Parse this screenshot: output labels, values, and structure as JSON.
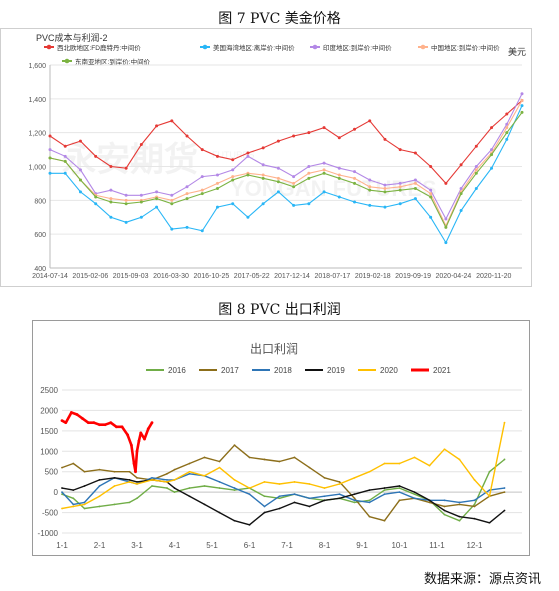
{
  "figures": {
    "fig7_title": "图 7 PVC 美金价格",
    "fig8_title": "图 8 PVC 出口利润",
    "source": "数据来源：源点资讯"
  },
  "chart_data": [
    {
      "type": "line",
      "title": "PVC成本与利润-2",
      "unit_label": "美元",
      "ylim": [
        400,
        1600
      ],
      "yticks": [
        400,
        600,
        800,
        1000,
        1200,
        1400,
        1600
      ],
      "x_tick_labels": [
        "2014-07-14",
        "2015-02-06",
        "2015-09-03",
        "2016-03-30",
        "2016-10-25",
        "2017-05-22",
        "2017-12-14",
        "2018-07-17",
        "2019-02-18",
        "2019-09-19",
        "2020-04-24",
        "2020-11-20"
      ],
      "grid": true,
      "legend_position": "top",
      "watermark": "FUTURES 永安期货 YONGAN FUTURES",
      "series": [
        {
          "name": "西北欧地区:FD鹿特丹:中间价",
          "color": "#e53935",
          "values": [
            1180,
            1120,
            1150,
            1060,
            1000,
            990,
            1130,
            1240,
            1270,
            1180,
            1100,
            1060,
            1040,
            1080,
            1110,
            1150,
            1180,
            1200,
            1230,
            1170,
            1220,
            1270,
            1160,
            1100,
            1080,
            1000,
            900,
            1010,
            1120,
            1230,
            1310,
            1390
          ]
        },
        {
          "name": "美国海湾地区:离岸价:中间价",
          "color": "#29b6f6",
          "values": [
            960,
            960,
            850,
            780,
            700,
            670,
            700,
            760,
            630,
            640,
            620,
            760,
            780,
            700,
            780,
            850,
            770,
            780,
            850,
            820,
            790,
            770,
            760,
            780,
            810,
            700,
            550,
            740,
            870,
            990,
            1160,
            1360
          ]
        },
        {
          "name": "印度地区:到岸价:中间价",
          "color": "#b388e6",
          "values": [
            1100,
            1060,
            980,
            840,
            860,
            830,
            830,
            850,
            830,
            880,
            940,
            950,
            980,
            1060,
            1010,
            990,
            940,
            1000,
            1020,
            990,
            970,
            920,
            890,
            900,
            920,
            860,
            690,
            870,
            1000,
            1100,
            1250,
            1430
          ]
        },
        {
          "name": "中国地区:到岸价:中间价",
          "color": "#ffb28c",
          "values": [
            1050,
            1030,
            920,
            830,
            810,
            800,
            800,
            820,
            800,
            840,
            860,
            900,
            940,
            960,
            950,
            930,
            900,
            960,
            980,
            950,
            930,
            880,
            870,
            880,
            900,
            840,
            650,
            850,
            980,
            1080,
            1230,
            1390
          ]
        },
        {
          "name": "东南亚地区:到岸价:中间价",
          "color": "#7cb342",
          "values": [
            1050,
            1030,
            920,
            820,
            790,
            780,
            790,
            810,
            780,
            810,
            840,
            870,
            920,
            950,
            930,
            910,
            880,
            930,
            960,
            930,
            900,
            860,
            850,
            860,
            870,
            820,
            640,
            840,
            960,
            1070,
            1200,
            1320
          ]
        }
      ]
    },
    {
      "type": "line",
      "title": "出口利润",
      "ylim": [
        -1000,
        2500
      ],
      "yticks": [
        -1000,
        -500,
        0,
        500,
        1000,
        1500,
        2000,
        2500
      ],
      "categories": [
        "1-1",
        "2-1",
        "3-1",
        "4-1",
        "5-1",
        "6-1",
        "7-1",
        "8-1",
        "9-1",
        "10-1",
        "11-1",
        "12-1"
      ],
      "grid": true,
      "legend_position": "top",
      "series": [
        {
          "name": "2016",
          "color": "#70ad47",
          "x": [
            0,
            0.3,
            0.6,
            1,
            1.4,
            1.8,
            2,
            2.4,
            2.8,
            3,
            3.4,
            3.8,
            4.2,
            4.6,
            5,
            5.4,
            5.8,
            6.2,
            6.6,
            7,
            7.4,
            7.8,
            8.2,
            8.6,
            9,
            9.4,
            9.8,
            10.2,
            10.6,
            11,
            11.4,
            11.8
          ],
          "values": [
            -50,
            -150,
            -400,
            -350,
            -300,
            -250,
            -150,
            150,
            100,
            0,
            100,
            150,
            100,
            50,
            100,
            -100,
            -150,
            -50,
            -150,
            -200,
            -150,
            -250,
            -200,
            50,
            100,
            -50,
            -200,
            -550,
            -700,
            -300,
            500,
            800
          ]
        },
        {
          "name": "2017",
          "color": "#8c6e1a",
          "x": [
            0,
            0.3,
            0.6,
            1,
            1.4,
            1.8,
            2,
            2.4,
            2.8,
            3,
            3.4,
            3.8,
            4.2,
            4.6,
            5,
            5.4,
            5.8,
            6.2,
            6.6,
            7,
            7.4,
            7.8,
            8.2,
            8.6,
            9,
            9.4,
            9.8,
            10.2,
            10.6,
            11,
            11.4,
            11.8
          ],
          "values": [
            600,
            700,
            500,
            550,
            500,
            500,
            350,
            300,
            450,
            550,
            700,
            850,
            750,
            1150,
            850,
            800,
            750,
            850,
            600,
            350,
            250,
            -150,
            -600,
            -700,
            -200,
            -150,
            -250,
            -350,
            -300,
            -350,
            -100,
            0
          ]
        },
        {
          "name": "2018",
          "color": "#2e75b6",
          "x": [
            0,
            0.3,
            0.6,
            1,
            1.4,
            1.8,
            2,
            2.4,
            2.8,
            3,
            3.4,
            3.8,
            4.2,
            4.6,
            5,
            5.4,
            5.8,
            6.2,
            6.6,
            7,
            7.4,
            7.8,
            8.2,
            8.6,
            9,
            9.4,
            9.8,
            10.2,
            10.6,
            11,
            11.4,
            11.8
          ],
          "values": [
            0,
            -300,
            -250,
            150,
            350,
            250,
            200,
            350,
            300,
            300,
            450,
            400,
            250,
            100,
            -50,
            -350,
            -100,
            -50,
            -150,
            -100,
            -50,
            -200,
            -250,
            -50,
            0,
            -150,
            -200,
            -200,
            -250,
            -200,
            50,
            100
          ]
        },
        {
          "name": "2019",
          "color": "#111111",
          "x": [
            0,
            0.3,
            0.6,
            1,
            1.4,
            1.8,
            2,
            2.4,
            2.8,
            3,
            3.4,
            3.8,
            4.2,
            4.6,
            5,
            5.4,
            5.8,
            6.2,
            6.6,
            7,
            7.4,
            7.8,
            8.2,
            8.6,
            9,
            9.4,
            9.8,
            10.2,
            10.6,
            11,
            11.4,
            11.8
          ],
          "values": [
            100,
            50,
            150,
            300,
            350,
            300,
            250,
            300,
            250,
            100,
            -100,
            -300,
            -500,
            -700,
            -800,
            -500,
            -400,
            -250,
            -350,
            -200,
            -150,
            -50,
            50,
            100,
            150,
            0,
            -200,
            -450,
            -600,
            -650,
            -750,
            -450
          ]
        },
        {
          "name": "2020",
          "color": "#ffc000",
          "x": [
            0,
            0.3,
            0.6,
            1,
            1.4,
            1.8,
            2,
            2.4,
            2.8,
            3,
            3.4,
            3.8,
            4.2,
            4.6,
            5,
            5.4,
            5.8,
            6.2,
            6.6,
            7,
            7.4,
            7.8,
            8.2,
            8.6,
            9,
            9.4,
            9.8,
            10.2,
            10.6,
            11,
            11.4,
            11.8
          ],
          "values": [
            -400,
            -350,
            -300,
            -100,
            150,
            250,
            200,
            300,
            250,
            300,
            500,
            400,
            600,
            300,
            100,
            250,
            200,
            250,
            200,
            100,
            200,
            350,
            500,
            700,
            700,
            850,
            650,
            1050,
            800,
            300,
            -100,
            1700
          ]
        },
        {
          "name": "2021",
          "color": "#ff0000",
          "emphasis": true,
          "x": [
            0,
            0.1,
            0.25,
            0.4,
            0.55,
            0.7,
            0.85,
            1,
            1.15,
            1.3,
            1.45,
            1.6,
            1.75,
            1.85,
            1.92,
            1.96,
            2,
            2.05,
            2.1,
            2.2,
            2.3,
            2.4
          ],
          "values": [
            1750,
            1700,
            1950,
            1900,
            1800,
            1700,
            1700,
            1650,
            1650,
            1700,
            1600,
            1600,
            1400,
            1150,
            700,
            500,
            1000,
            1250,
            1450,
            1300,
            1550,
            1700
          ]
        }
      ]
    }
  ]
}
